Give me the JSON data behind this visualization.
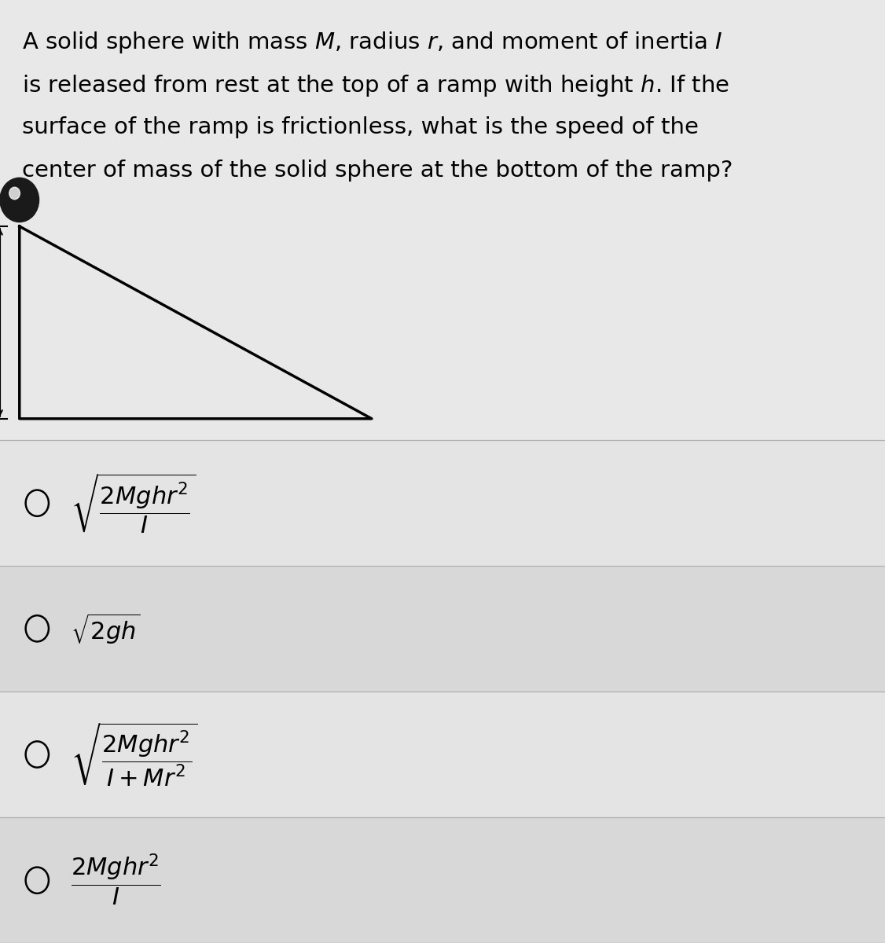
{
  "background_color": "#e8e8e8",
  "text_color": "#000000",
  "question_text_lines": [
    "A solid sphere with mass $M$, radius $r$, and moment of inertia $I$",
    "is released from rest at the top of a ramp with height $h$. If the",
    "surface of the ramp is frictionless, what is the speed of the",
    "center of mass of the solid sphere at the bottom of the ramp?"
  ],
  "option_formulas": [
    "$\\sqrt{\\dfrac{2Mghr^2}{I}}$",
    "$\\sqrt{2gh}$",
    "$\\sqrt{\\dfrac{2Mghr^2}{I + Mr^2}}$",
    "$\\dfrac{2Mghr^2}{I}$"
  ],
  "question_font_size": 21,
  "option_font_size": 22,
  "fig_width": 11.26,
  "fig_height": 12.0,
  "dpi": 100
}
